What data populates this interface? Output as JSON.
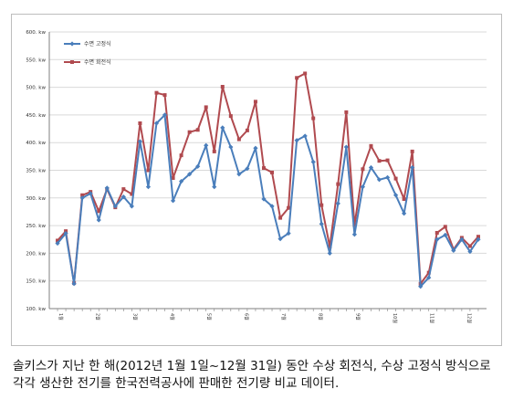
{
  "caption": {
    "line1": "솔키스가 지난 한 해(2012년 1월 1일~12월 31일) 동안 수상 회전식, 수상 고정식 방식으로",
    "line2": "각각 생산한 전기를 한국전력공사에 판매한 전기량 비교 데이터."
  },
  "colors": {
    "fixed": "#4a7ebb",
    "rotating": "#b04a4f",
    "grid": "#d9d9d9",
    "axis": "#7f7f7f",
    "text": "#333333"
  },
  "chart_data": {
    "type": "line",
    "title": "",
    "xlabel": "",
    "ylabel": "",
    "ylim": [
      100,
      600
    ],
    "yticks": [
      100,
      150,
      200,
      250,
      300,
      350,
      400,
      450,
      500,
      550,
      600
    ],
    "ytick_labels": [
      "100. kw",
      "150. kw",
      "200. kw",
      "250. kw",
      "300. kw",
      "350. kw",
      "400. kw",
      "450. kw",
      "500. kw",
      "550. kw",
      "600. kw"
    ],
    "xlim": [
      0,
      53
    ],
    "x_tick_positions": [
      1,
      5.5,
      10,
      14.5,
      19,
      23.5,
      28,
      32.5,
      37,
      41.5,
      46,
      50.5
    ],
    "x_tick_labels": [
      "1월",
      "2월",
      "3월",
      "4월",
      "5월",
      "6월",
      "7월",
      "8월",
      "9월",
      "10월",
      "11월",
      "12월"
    ],
    "legend": {
      "position": "top-left"
    },
    "grid": true,
    "x": [
      1,
      2,
      3,
      4,
      5,
      6,
      7,
      8,
      9,
      10,
      11,
      12,
      13,
      14,
      15,
      16,
      17,
      18,
      19,
      20,
      21,
      22,
      23,
      24,
      25,
      26,
      27,
      28,
      29,
      30,
      31,
      32,
      33,
      34,
      35,
      36,
      37,
      38,
      39,
      40,
      41,
      42,
      43,
      44,
      45,
      46,
      47,
      48,
      49,
      50,
      51,
      52
    ],
    "series": [
      {
        "name": "수면 고정식",
        "marker": "diamond",
        "values": [
          218,
          236,
          145,
          300,
          308,
          260,
          318,
          285,
          302,
          285,
          402,
          320,
          435,
          450,
          295,
          330,
          343,
          357,
          395,
          320,
          427,
          392,
          343,
          353,
          390,
          298,
          285,
          226,
          236,
          404,
          412,
          365,
          253,
          200,
          290,
          392,
          234,
          320,
          355,
          333,
          337,
          305,
          272,
          355,
          140,
          156,
          225,
          233,
          205,
          225,
          203,
          225
        ]
      },
      {
        "name": "수면 회전식",
        "marker": "square",
        "values": [
          223,
          240,
          146,
          305,
          311,
          276,
          316,
          283,
          316,
          307,
          435,
          350,
          490,
          486,
          336,
          377,
          419,
          423,
          464,
          384,
          501,
          448,
          406,
          422,
          474,
          354,
          346,
          264,
          282,
          517,
          525,
          444,
          287,
          212,
          325,
          455,
          251,
          352,
          394,
          367,
          368,
          335,
          298,
          384,
          145,
          165,
          237,
          248,
          207,
          228,
          213,
          230
        ]
      }
    ]
  }
}
